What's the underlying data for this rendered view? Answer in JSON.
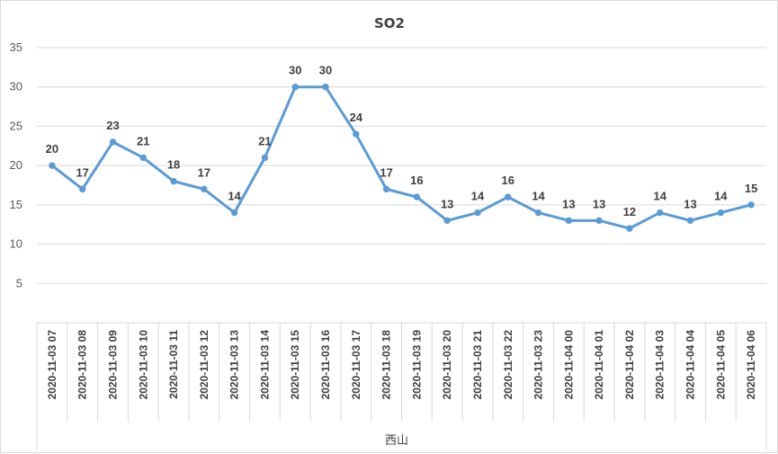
{
  "chart_data": {
    "type": "line",
    "title": "SO2",
    "categories": [
      "2020-11-03 07",
      "2020-11-03 08",
      "2020-11-03 09",
      "2020-11-03 10",
      "2020-11-03 11",
      "2020-11-03 12",
      "2020-11-03 13",
      "2020-11-03 14",
      "2020-11-03 15",
      "2020-11-03 16",
      "2020-11-03 17",
      "2020-11-03 18",
      "2020-11-03 19",
      "2020-11-03 20",
      "2020-11-03 21",
      "2020-11-03 22",
      "2020-11-03 23",
      "2020-11-04 00",
      "2020-11-04 01",
      "2020-11-04 02",
      "2020-11-04 03",
      "2020-11-04 04",
      "2020-11-04 05",
      "2020-11-04 06"
    ],
    "values": [
      20,
      17,
      23,
      21,
      18,
      17,
      14,
      21,
      30,
      30,
      24,
      17,
      16,
      13,
      14,
      16,
      14,
      13,
      13,
      12,
      14,
      13,
      14,
      15
    ],
    "group_label": "西山",
    "y_ticks": [
      "5",
      "10",
      "15",
      "20",
      "25",
      "30",
      "35"
    ],
    "ylim": [
      0,
      35
    ],
    "grid": true,
    "line_color": "#5B9BD5"
  }
}
